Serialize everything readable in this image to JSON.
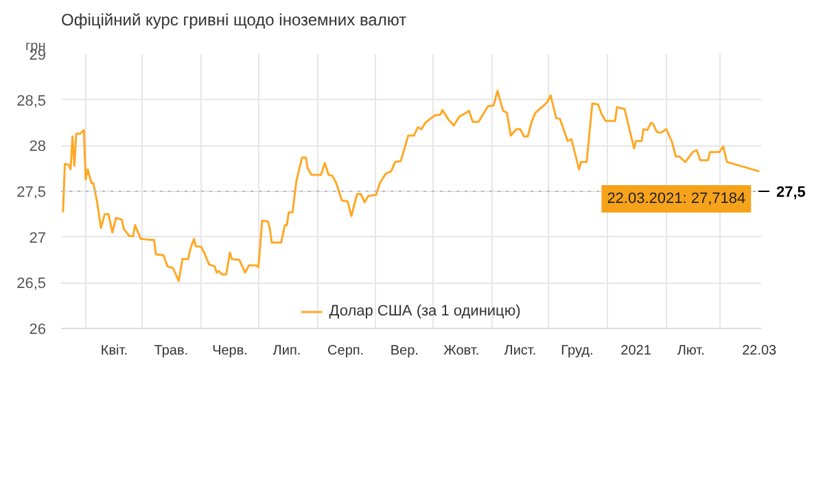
{
  "chart_data": {
    "type": "line",
    "title": "Офіційний курс гривні щодо іноземних валют",
    "ylabel": "грн",
    "x": [
      "2020-03-20",
      "2020-03-21",
      "2020-03-23",
      "2020-03-24",
      "2020-03-25",
      "2020-03-26",
      "2020-03-27",
      "2020-03-29",
      "2020-03-31",
      "2020-04-01",
      "2020-04-02",
      "2020-04-04",
      "2020-04-05",
      "2020-04-07",
      "2020-04-09",
      "2020-04-11",
      "2020-04-13",
      "2020-04-15",
      "2020-04-17",
      "2020-04-20",
      "2020-04-21",
      "2020-04-24",
      "2020-04-26",
      "2020-04-27",
      "2020-04-30",
      "2020-05-05",
      "2020-05-07",
      "2020-05-08",
      "2020-05-12",
      "2020-05-14",
      "2020-05-17",
      "2020-05-20",
      "2020-05-22",
      "2020-05-25",
      "2020-05-26",
      "2020-05-28",
      "2020-05-29",
      "2020-06-01",
      "2020-06-03",
      "2020-06-05",
      "2020-06-08",
      "2020-06-09",
      "2020-06-10",
      "2020-06-12",
      "2020-06-14",
      "2020-06-16",
      "2020-06-17",
      "2020-06-21",
      "2020-06-24",
      "2020-06-26",
      "2020-06-30",
      "2020-07-01",
      "2020-07-03",
      "2020-07-06",
      "2020-07-07",
      "2020-07-08",
      "2020-07-13",
      "2020-07-15",
      "2020-07-16",
      "2020-07-17",
      "2020-07-19",
      "2020-07-21",
      "2020-07-24",
      "2020-07-26",
      "2020-07-27",
      "2020-07-29",
      "2020-08-03",
      "2020-08-05",
      "2020-08-07",
      "2020-08-09",
      "2020-08-11",
      "2020-08-14",
      "2020-08-17",
      "2020-08-19",
      "2020-08-22",
      "2020-08-24",
      "2020-08-26",
      "2020-08-27",
      "2020-08-28",
      "2020-09-01",
      "2020-09-03",
      "2020-09-06",
      "2020-09-09",
      "2020-09-11",
      "2020-09-14",
      "2020-09-16",
      "2020-09-18",
      "2020-09-21",
      "2020-09-23",
      "2020-09-25",
      "2020-09-27",
      "2020-09-30",
      "2020-10-02",
      "2020-10-05",
      "2020-10-06",
      "2020-10-09",
      "2020-10-12",
      "2020-10-15",
      "2020-10-17",
      "2020-10-20",
      "2020-10-22",
      "2020-10-25",
      "2020-10-30",
      "2020-11-02",
      "2020-11-04",
      "2020-11-07",
      "2020-11-09",
      "2020-11-11",
      "2020-11-14",
      "2020-11-16",
      "2020-11-18",
      "2020-11-20",
      "2020-11-22",
      "2020-11-24",
      "2020-11-28",
      "2020-11-30",
      "2020-12-02",
      "2020-12-05",
      "2020-12-07",
      "2020-12-11",
      "2020-12-13",
      "2020-12-17",
      "2020-12-18",
      "2020-12-21",
      "2020-12-24",
      "2020-12-27",
      "2020-12-29",
      "2020-12-31",
      "2021-01-05",
      "2021-01-06",
      "2021-01-10",
      "2021-01-15",
      "2021-01-16",
      "2021-01-19",
      "2021-01-20",
      "2021-01-22",
      "2021-01-24",
      "2021-01-25",
      "2021-01-27",
      "2021-01-29",
      "2021-02-01",
      "2021-02-04",
      "2021-02-06",
      "2021-02-08",
      "2021-02-11",
      "2021-02-15",
      "2021-02-17",
      "2021-02-19",
      "2021-02-23",
      "2021-02-24",
      "2021-02-27",
      "2021-03-01",
      "2021-03-03",
      "2021-03-05",
      "2021-03-22"
    ],
    "series": [
      {
        "name": "Долар США (за 1 одиницю)",
        "color": "#ffa826",
        "values": [
          27.27,
          27.8,
          27.79,
          27.74,
          28.1,
          27.78,
          28.13,
          28.13,
          28.17,
          27.63,
          27.74,
          27.59,
          27.59,
          27.38,
          27.1,
          27.25,
          27.25,
          27.05,
          27.21,
          27.19,
          27.09,
          27.01,
          27.01,
          27.13,
          26.98,
          26.97,
          26.97,
          26.81,
          26.8,
          26.68,
          26.66,
          26.52,
          26.76,
          26.76,
          26.86,
          26.98,
          26.9,
          26.89,
          26.8,
          26.7,
          26.68,
          26.61,
          26.63,
          26.59,
          26.59,
          26.83,
          26.76,
          26.75,
          26.61,
          26.69,
          26.69,
          26.67,
          27.18,
          27.17,
          27.1,
          26.94,
          26.94,
          27.13,
          27.13,
          27.27,
          27.27,
          27.61,
          27.87,
          27.87,
          27.75,
          27.68,
          27.68,
          27.81,
          27.68,
          27.67,
          27.59,
          27.4,
          27.39,
          27.23,
          27.47,
          27.47,
          27.38,
          27.42,
          27.45,
          27.46,
          27.59,
          27.69,
          27.72,
          27.82,
          27.83,
          27.97,
          28.11,
          28.11,
          28.2,
          28.18,
          28.25,
          28.3,
          28.33,
          28.34,
          28.39,
          28.29,
          28.22,
          28.32,
          28.34,
          28.38,
          28.26,
          28.26,
          28.43,
          28.44,
          28.6,
          28.38,
          28.36,
          28.11,
          28.18,
          28.18,
          28.1,
          28.1,
          28.26,
          28.36,
          28.43,
          28.47,
          28.55,
          28.3,
          28.29,
          28.05,
          28.07,
          27.74,
          27.82,
          27.82,
          28.46,
          28.45,
          28.34,
          28.27,
          28.27,
          28.42,
          28.4,
          27.97,
          28.05,
          28.05,
          28.18,
          28.17,
          28.25,
          28.24,
          28.15,
          28.14,
          28.18,
          28.04,
          27.88,
          27.88,
          27.82,
          27.93,
          27.95,
          27.84,
          27.84,
          27.93,
          27.93,
          27.93,
          27.99,
          27.82,
          27.7184
        ]
      }
    ],
    "xlim": [
      "2020-03-19",
      "2021-03-23"
    ],
    "xticks": [
      {
        "value": "2020-04-01",
        "label": null
      },
      {
        "value": "2020-04-16",
        "label": "Квіт."
      },
      {
        "value": "2020-05-01",
        "label": null
      },
      {
        "value": "2020-05-16",
        "label": "Трав."
      },
      {
        "value": "2020-06-01",
        "label": null
      },
      {
        "value": "2020-06-16",
        "label": "Черв."
      },
      {
        "value": "2020-07-01",
        "label": null
      },
      {
        "value": "2020-07-16",
        "label": "Лип."
      },
      {
        "value": "2020-08-01",
        "label": null
      },
      {
        "value": "2020-08-16",
        "label": "Серп."
      },
      {
        "value": "2020-09-01",
        "label": null
      },
      {
        "value": "2020-09-16",
        "label": "Вер."
      },
      {
        "value": "2020-10-01",
        "label": null
      },
      {
        "value": "2020-10-16",
        "label": "Жовт."
      },
      {
        "value": "2020-11-01",
        "label": null
      },
      {
        "value": "2020-11-16",
        "label": "Лист."
      },
      {
        "value": "2020-12-01",
        "label": null
      },
      {
        "value": "2020-12-16",
        "label": "Груд."
      },
      {
        "value": "2021-01-01",
        "label": null
      },
      {
        "value": "2021-01-16",
        "label": "2021"
      },
      {
        "value": "2021-02-01",
        "label": null
      },
      {
        "value": "2021-02-14",
        "label": "Лют."
      },
      {
        "value": "2021-03-01",
        "label": null
      },
      {
        "value": "2021-03-22",
        "label": "22.03"
      }
    ],
    "ylim": [
      26,
      29
    ],
    "yticks": [
      26,
      {
        "value": 26.5,
        "label": "26,5"
      },
      27,
      {
        "value": 27.5,
        "label": "27,5"
      },
      28,
      {
        "value": 28.5,
        "label": "28,5"
      },
      29
    ],
    "ref_lines": [
      {
        "axis": "y",
        "value": 27.5,
        "label": "27,5",
        "color": "#bbbbbb",
        "line_style": "dotted"
      }
    ],
    "annotations": [
      {
        "text": "22.03.2021: 27,7184",
        "x": "2021-03-22",
        "y": 27.7184
      }
    ],
    "grid": true,
    "legend": "bottom",
    "marker": "none",
    "line_style": "solid"
  }
}
